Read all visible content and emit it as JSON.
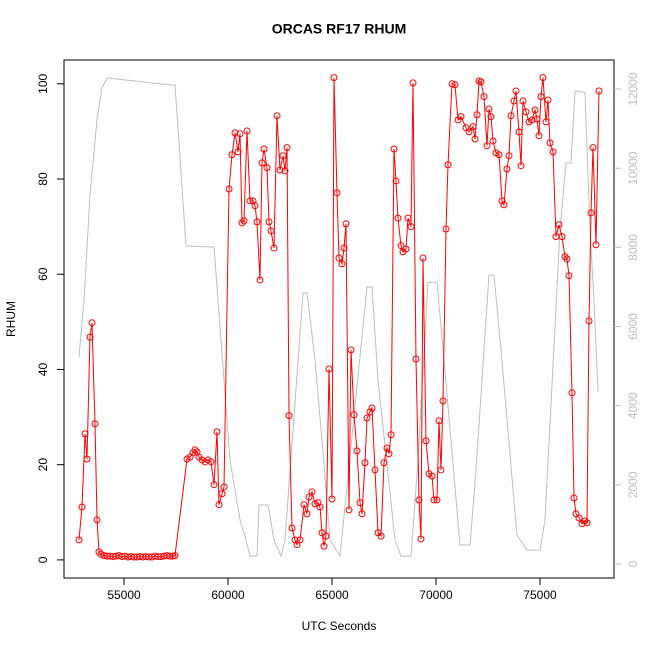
{
  "chart_data": {
    "type": "line",
    "title": "ORCAS RF17 RHUM",
    "xlabel": "UTC Seconds",
    "ylabel": "RHUM",
    "xlim": [
      52115,
      78558
    ],
    "xticks": [
      55000,
      60000,
      65000,
      70000,
      75000
    ],
    "ylim": [
      -3.8,
      105
    ],
    "yticks": [
      0,
      20,
      40,
      60,
      80,
      100
    ],
    "y2lim": [
      -354,
      12734
    ],
    "y2ticks": [
      0,
      2000,
      4000,
      6000,
      8000,
      10000,
      12000
    ],
    "series": [
      {
        "color": "#ff0000",
        "marker": "circle",
        "x": [
          52836,
          52980,
          53125,
          53221,
          53365,
          53462,
          53606,
          53702,
          53798,
          53894,
          54038,
          54183,
          54327,
          54471,
          54615,
          54760,
          54904,
          55048,
          55192,
          55337,
          55481,
          55625,
          55769,
          55913,
          56058,
          56202,
          56346,
          56490,
          56635,
          56779,
          56923,
          57067,
          57212,
          57356,
          57452,
          58029,
          58173,
          58317,
          58414,
          58510,
          58606,
          58750,
          58894,
          59038,
          59183,
          59327,
          59471,
          59567,
          59712,
          59808,
          60048,
          60192,
          60337,
          60481,
          60577,
          60673,
          60769,
          60913,
          61058,
          61202,
          61298,
          61394,
          61538,
          61635,
          61731,
          61875,
          61971,
          62067,
          62212,
          62356,
          62500,
          62644,
          62740,
          62837,
          62933,
          63077,
          63221,
          63317,
          63462,
          63654,
          63798,
          63894,
          64039,
          64183,
          64327,
          64423,
          64519,
          64615,
          64712,
          64856,
          65000,
          65096,
          65240,
          65337,
          65481,
          65577,
          65673,
          65817,
          65913,
          66058,
          66202,
          66346,
          66442,
          66587,
          66683,
          66827,
          66923,
          67067,
          67212,
          67356,
          67500,
          67644,
          67740,
          67837,
          67981,
          68077,
          68173,
          68317,
          68414,
          68558,
          68654,
          68798,
          68894,
          69038,
          69183,
          69279,
          69375,
          69519,
          69663,
          69808,
          69904,
          70048,
          70144,
          70240,
          70337,
          70481,
          70577,
          70769,
          70913,
          71058,
          71202,
          71442,
          71587,
          71779,
          71875,
          71971,
          72067,
          72163,
          72308,
          72452,
          72548,
          72644,
          72740,
          72885,
          73029,
          73173,
          73269,
          73413,
          73510,
          73606,
          73750,
          73846,
          73990,
          74087,
          74183,
          74327,
          74471,
          74615,
          74760,
          74856,
          74952,
          75048,
          75144,
          75288,
          75385,
          75481,
          75625,
          75769,
          75913,
          76058,
          76202,
          76298,
          76394,
          76538,
          76635,
          76731,
          76875,
          77019,
          77163,
          77260,
          77356,
          77452,
          77548,
          77692,
          77837
        ],
        "values": [
          4.2,
          11.1,
          26.5,
          21.2,
          46.8,
          49.8,
          28.6,
          8.4,
          1.7,
          1.2,
          0.9,
          0.8,
          0.8,
          0.7,
          0.8,
          0.9,
          0.7,
          0.8,
          0.6,
          0.7,
          0.6,
          0.6,
          0.7,
          0.6,
          0.7,
          0.6,
          0.6,
          0.8,
          0.7,
          0.7,
          0.8,
          0.9,
          0.8,
          0.8,
          0.9,
          21.2,
          21.6,
          22.5,
          23.1,
          22.7,
          21.6,
          21.0,
          20.6,
          21.0,
          20.6,
          15.8,
          26.9,
          11.6,
          13.9,
          15.3,
          77.9,
          85.1,
          89.7,
          85.7,
          89.5,
          70.8,
          71.2,
          90.1,
          75.4,
          75.4,
          74.4,
          71.0,
          58.8,
          83.4,
          86.3,
          82.4,
          71.0,
          69.1,
          65.5,
          93.3,
          81.9,
          84.9,
          81.7,
          86.6,
          30.3,
          6.7,
          4.2,
          3.2,
          4.2,
          11.6,
          9.7,
          13.2,
          14.3,
          11.8,
          12.0,
          11.1,
          5.7,
          2.9,
          5.0,
          40.1,
          12.8,
          101.3,
          77.1,
          63.4,
          62.2,
          65.5,
          70.6,
          10.5,
          44.1,
          30.5,
          22.9,
          12.0,
          9.7,
          20.4,
          29.8,
          31.1,
          31.9,
          18.9,
          5.7,
          5.0,
          20.4,
          23.5,
          22.3,
          26.3,
          86.3,
          79.6,
          71.8,
          66.0,
          64.7,
          65.3,
          71.8,
          70.0,
          100.2,
          42.2,
          12.6,
          4.4,
          63.4,
          25.0,
          18.1,
          17.6,
          12.6,
          12.6,
          29.2,
          18.9,
          33.4,
          69.5,
          83.0,
          100,
          99.8,
          92.4,
          93.1,
          90.8,
          89.9,
          91.0,
          88.4,
          93.5,
          100.6,
          100.4,
          97.3,
          87.0,
          94.7,
          93.1,
          88.0,
          85.5,
          85.1,
          75.4,
          74.6,
          82.1,
          84.9,
          93.3,
          96.4,
          98.5,
          89.9,
          82.8,
          96.4,
          94.1,
          92.0,
          92.4,
          94.5,
          92.6,
          89.1,
          97.3,
          101.3,
          92.0,
          96.6,
          87.6,
          85.7,
          67.9,
          70.4,
          67.9,
          63.7,
          63.2,
          59.7,
          35.1,
          13.0,
          9.7,
          8.8,
          7.6,
          8.2,
          7.8,
          50.2,
          72.9,
          86.6,
          66.2,
          98.5
        ]
      },
      {
        "color": "#bebebe",
        "axis": "y2",
        "x": [
          52836,
          53077,
          53365,
          53702,
          53942,
          54183,
          57308,
          57452,
          57981,
          59327,
          60096,
          60577,
          60865,
          61058,
          61394,
          61490,
          61923,
          62212,
          62548,
          62740,
          63606,
          63798,
          64183,
          64519,
          64904,
          65385,
          66683,
          66923,
          67212,
          68029,
          68317,
          68798,
          69135,
          69615,
          70048,
          70385,
          71154,
          71635,
          71923,
          72548,
          72788,
          73125,
          73894,
          74375,
          75000,
          75240,
          75962,
          76250,
          76490,
          76683,
          77163,
          77404,
          77596,
          77788
        ],
        "values": [
          5230,
          6670,
          9320,
          11220,
          12030,
          12280,
          12100,
          12100,
          8030,
          8010,
          2630,
          1110,
          606,
          200,
          200,
          1490,
          1490,
          606,
          200,
          606,
          6850,
          6850,
          5150,
          3130,
          606,
          200,
          7000,
          7000,
          4650,
          606,
          200,
          200,
          2630,
          7120,
          7120,
          5150,
          480,
          480,
          2370,
          7300,
          7300,
          5410,
          730,
          350,
          350,
          1110,
          8440,
          10130,
          10130,
          11950,
          11920,
          8440,
          6670,
          4350
        ]
      }
    ]
  }
}
